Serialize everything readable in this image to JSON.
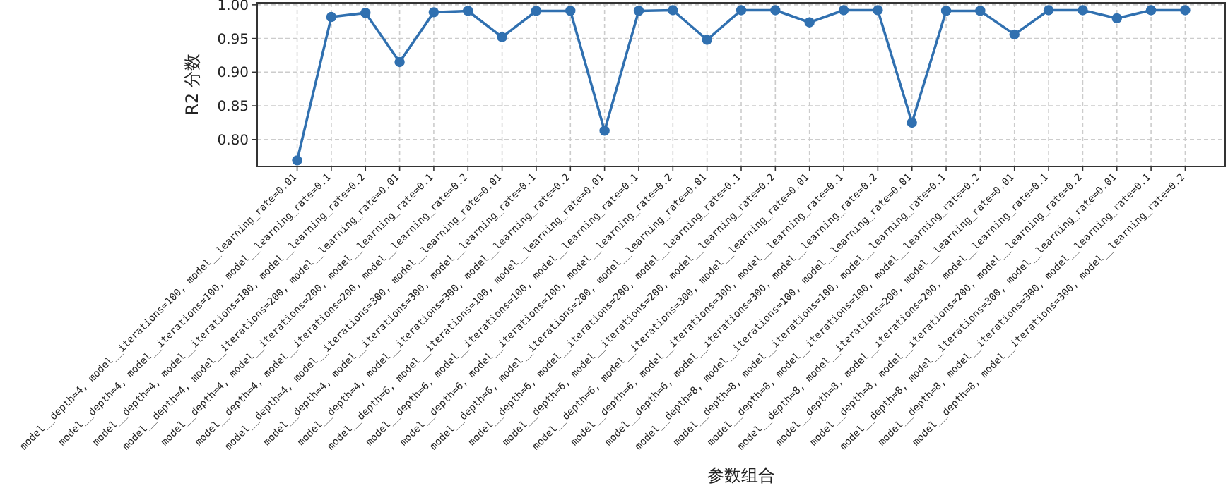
{
  "chart_data": {
    "type": "line",
    "xlabel": "参数组合",
    "ylabel": "R2 分数",
    "categories": [
      "model__depth=4, model__iterations=100, model__learning_rate=0.01",
      "model__depth=4, model__iterations=100, model__learning_rate=0.1",
      "model__depth=4, model__iterations=100, model__learning_rate=0.2",
      "model__depth=4, model__iterations=200, model__learning_rate=0.01",
      "model__depth=4, model__iterations=200, model__learning_rate=0.1",
      "model__depth=4, model__iterations=200, model__learning_rate=0.2",
      "model__depth=4, model__iterations=300, model__learning_rate=0.01",
      "model__depth=4, model__iterations=300, model__learning_rate=0.1",
      "model__depth=4, model__iterations=300, model__learning_rate=0.2",
      "model__depth=6, model__iterations=100, model__learning_rate=0.01",
      "model__depth=6, model__iterations=100, model__learning_rate=0.1",
      "model__depth=6, model__iterations=100, model__learning_rate=0.2",
      "model__depth=6, model__iterations=200, model__learning_rate=0.01",
      "model__depth=6, model__iterations=200, model__learning_rate=0.1",
      "model__depth=6, model__iterations=200, model__learning_rate=0.2",
      "model__depth=6, model__iterations=300, model__learning_rate=0.01",
      "model__depth=6, model__iterations=300, model__learning_rate=0.1",
      "model__depth=6, model__iterations=300, model__learning_rate=0.2",
      "model__depth=8, model__iterations=100, model__learning_rate=0.01",
      "model__depth=8, model__iterations=100, model__learning_rate=0.1",
      "model__depth=8, model__iterations=100, model__learning_rate=0.2",
      "model__depth=8, model__iterations=200, model__learning_rate=0.01",
      "model__depth=8, model__iterations=200, model__learning_rate=0.1",
      "model__depth=8, model__iterations=200, model__learning_rate=0.2",
      "model__depth=8, model__iterations=300, model__learning_rate=0.01",
      "model__depth=8, model__iterations=300, model__learning_rate=0.1",
      "model__depth=8, model__iterations=300, model__learning_rate=0.2"
    ],
    "series": [
      {
        "color": "#3070b0",
        "values": [
          0.769,
          0.982,
          0.988,
          0.915,
          0.989,
          0.991,
          0.952,
          0.991,
          0.991,
          0.813,
          0.991,
          0.992,
          0.948,
          0.992,
          0.992,
          0.974,
          0.992,
          0.992,
          0.825,
          0.991,
          0.991,
          0.956,
          0.992,
          0.992,
          0.98,
          0.992,
          0.992
        ]
      }
    ],
    "ylim": [
      0.76,
      1.003
    ],
    "yticks": [
      {
        "value": 0.8,
        "label": "0.80"
      },
      {
        "value": 0.85,
        "label": "0.85"
      },
      {
        "value": 0.9,
        "label": "0.90"
      },
      {
        "value": 0.95,
        "label": "0.95"
      },
      {
        "value": 1.0,
        "label": "1.00"
      }
    ],
    "grid": true,
    "marker": "circle",
    "line_style": "solid"
  }
}
